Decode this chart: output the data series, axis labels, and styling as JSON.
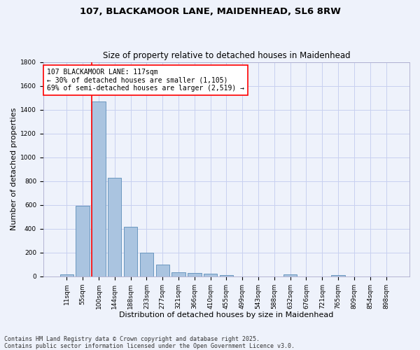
{
  "title": "107, BLACKAMOOR LANE, MAIDENHEAD, SL6 8RW",
  "subtitle": "Size of property relative to detached houses in Maidenhead",
  "xlabel": "Distribution of detached houses by size in Maidenhead",
  "ylabel": "Number of detached properties",
  "categories": [
    "11sqm",
    "55sqm",
    "100sqm",
    "144sqm",
    "188sqm",
    "233sqm",
    "277sqm",
    "321sqm",
    "366sqm",
    "410sqm",
    "455sqm",
    "499sqm",
    "543sqm",
    "588sqm",
    "632sqm",
    "676sqm",
    "721sqm",
    "765sqm",
    "809sqm",
    "854sqm",
    "898sqm"
  ],
  "values": [
    15,
    590,
    1470,
    830,
    415,
    200,
    100,
    35,
    30,
    20,
    10,
    0,
    0,
    0,
    15,
    0,
    0,
    10,
    0,
    0,
    0
  ],
  "bar_color": "#aac4e0",
  "bar_edge_color": "#5b8db8",
  "background_color": "#eef2fb",
  "grid_color": "#c8d0f0",
  "vline_color": "red",
  "vline_bar_index": 2,
  "annotation_text": "107 BLACKAMOOR LANE: 117sqm\n← 30% of detached houses are smaller (1,105)\n69% of semi-detached houses are larger (2,519) →",
  "annotation_box_facecolor": "white",
  "annotation_box_edgecolor": "red",
  "ylim": [
    0,
    1800
  ],
  "yticks": [
    0,
    200,
    400,
    600,
    800,
    1000,
    1200,
    1400,
    1600,
    1800
  ],
  "footer": "Contains HM Land Registry data © Crown copyright and database right 2025.\nContains public sector information licensed under the Open Government Licence v3.0.",
  "title_fontsize": 9.5,
  "subtitle_fontsize": 8.5,
  "xlabel_fontsize": 8,
  "ylabel_fontsize": 8,
  "tick_fontsize": 6.5,
  "annotation_fontsize": 7,
  "footer_fontsize": 6
}
